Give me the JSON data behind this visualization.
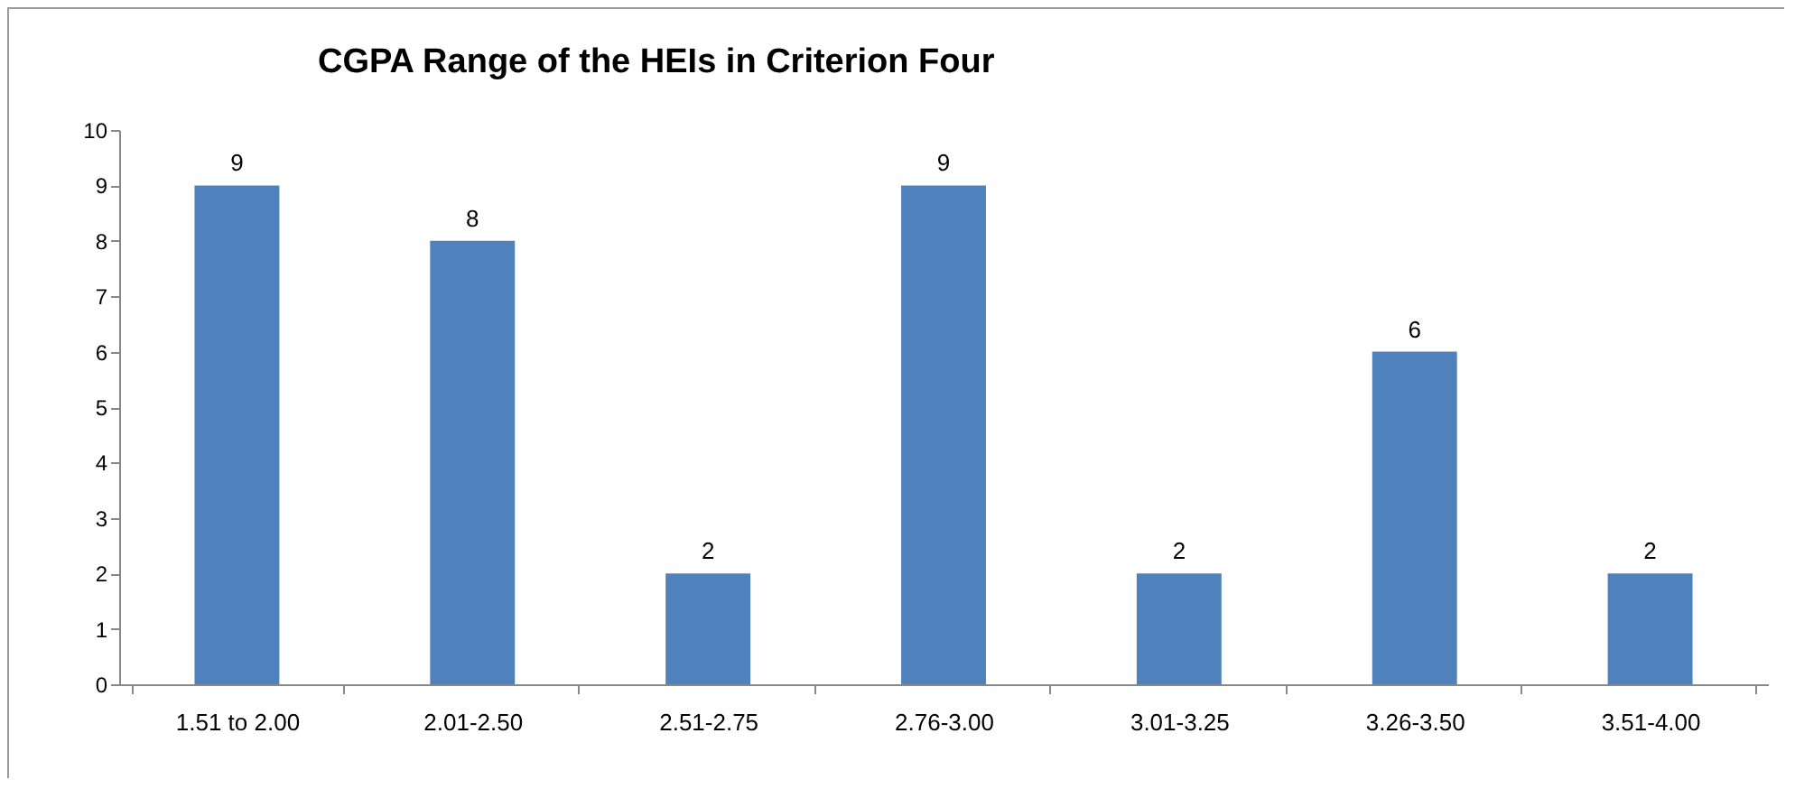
{
  "chart_data": {
    "type": "bar",
    "title": "CGPA Range of the HEIs in Criterion Four",
    "categories": [
      "1.51 to 2.00",
      "2.01-2.50",
      "2.51-2.75",
      "2.76-3.00",
      "3.01-3.25",
      "3.26-3.50",
      "3.51-4.00"
    ],
    "values": [
      9,
      8,
      2,
      9,
      2,
      6,
      2
    ],
    "color": "#4f81bd",
    "ylim": [
      0,
      10
    ],
    "yticks": [
      0,
      1,
      2,
      3,
      4,
      5,
      6,
      7,
      8,
      9,
      10
    ],
    "grid": false,
    "data_labels": true
  }
}
